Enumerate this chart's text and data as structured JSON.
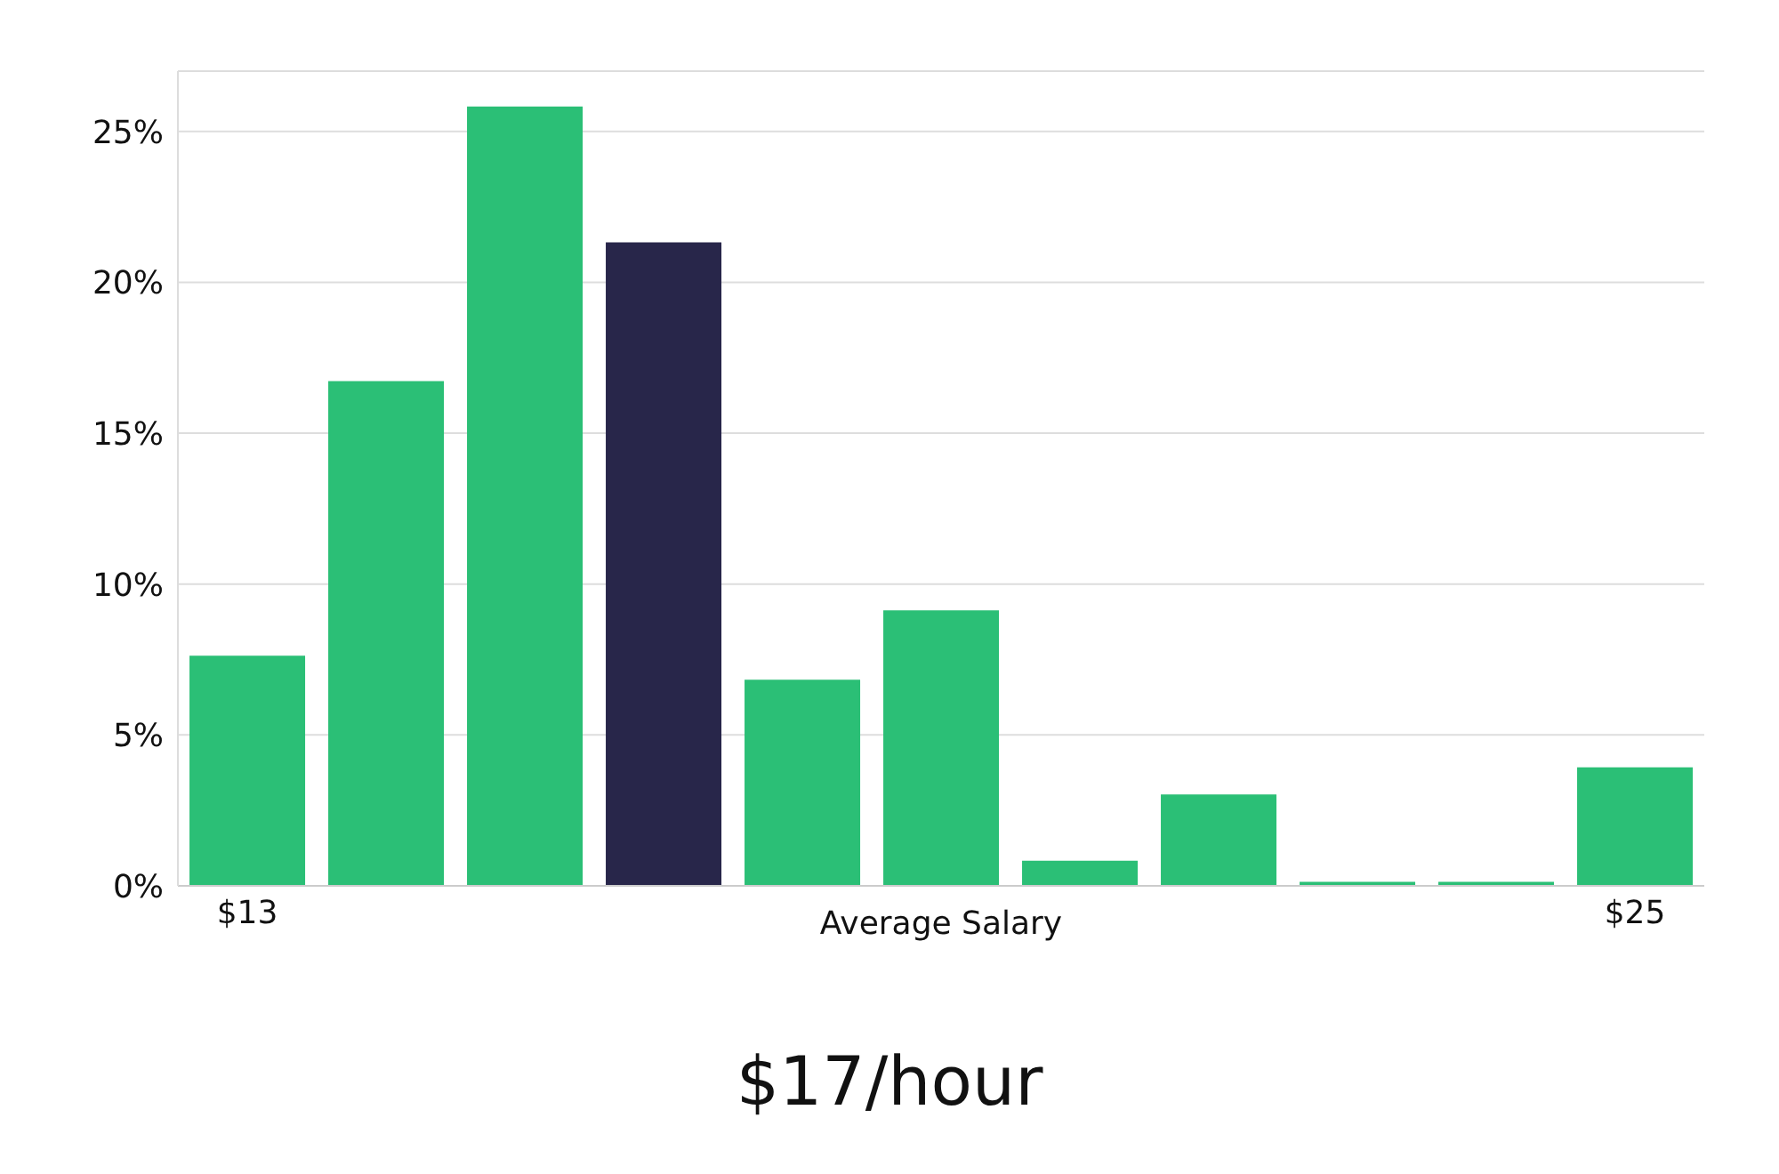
{
  "chart_data": {
    "type": "bar",
    "xlabel": "Average Salary",
    "categories": [
      "$13",
      null,
      null,
      null,
      null,
      null,
      null,
      null,
      null,
      null,
      "$25"
    ],
    "values": [
      7.6,
      16.7,
      25.8,
      21.3,
      6.8,
      9.1,
      0.8,
      3.0,
      0.1,
      0.1,
      3.9
    ],
    "colors": [
      "#2bbf76",
      "#2bbf76",
      "#2bbf76",
      "#28264a",
      "#2bbf76",
      "#2bbf76",
      "#2bbf76",
      "#2bbf76",
      "#2bbf76",
      "#2bbf76",
      "#2bbf76"
    ],
    "ylim": [
      0,
      27
    ],
    "yticks": [
      {
        "value": 0,
        "label": "0%"
      },
      {
        "value": 5,
        "label": "5%"
      },
      {
        "value": 10,
        "label": "10%"
      },
      {
        "value": 15,
        "label": "15%"
      },
      {
        "value": 20,
        "label": "20%"
      },
      {
        "value": 25,
        "label": "25%"
      }
    ],
    "grid": "y",
    "annotations": [
      "$17/hour"
    ]
  }
}
